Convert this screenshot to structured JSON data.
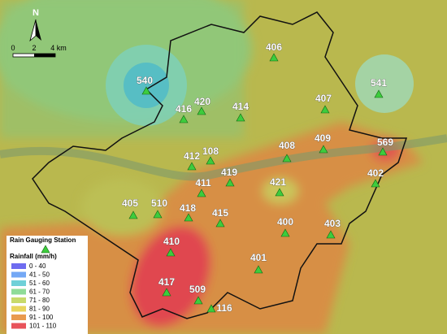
{
  "north": "N",
  "scale": {
    "labels": [
      "0",
      "2",
      "4 km"
    ]
  },
  "stations": [
    "540",
    "416",
    "420",
    "414",
    "406",
    "407",
    "541",
    "408",
    "409",
    "569",
    "412",
    "108",
    "419",
    "421",
    "402",
    "411",
    "405",
    "510",
    "418",
    "415",
    "400",
    "403",
    "410",
    "401",
    "417",
    "509",
    "116"
  ],
  "legend": {
    "station_title": "Rain Gauging Station",
    "rainfall_title": "Rainfall (mm/h)",
    "classes": [
      {
        "label": "0 - 40",
        "color": "#6f6cf0"
      },
      {
        "label": "41 - 50",
        "color": "#74a8f5"
      },
      {
        "label": "51 - 60",
        "color": "#6fd0d8"
      },
      {
        "label": "61 - 70",
        "color": "#8fdc98"
      },
      {
        "label": "71 - 80",
        "color": "#c8da6a"
      },
      {
        "label": "81 - 90",
        "color": "#e9d55c"
      },
      {
        "label": "91 - 100",
        "color": "#e99a4e"
      },
      {
        "label": "101 - 110",
        "color": "#e8535a"
      }
    ]
  }
}
